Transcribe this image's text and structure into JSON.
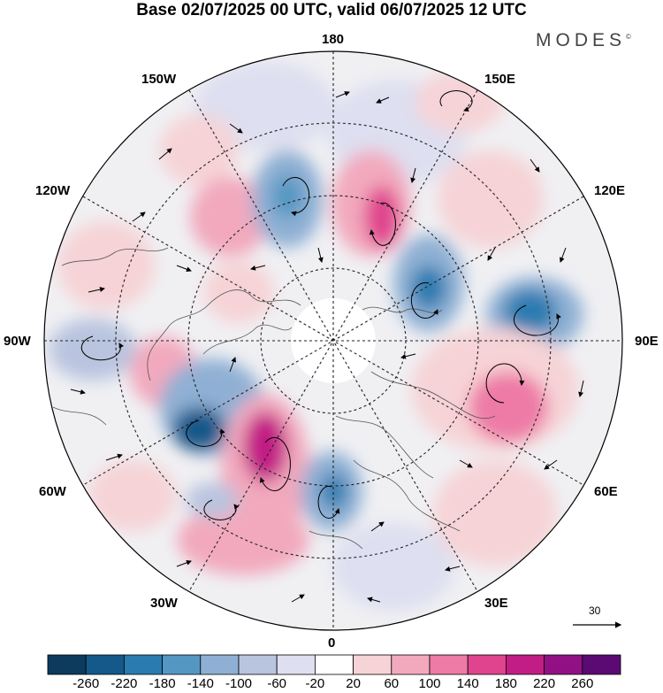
{
  "header": {
    "title": "Base 02/07/2025 00 UTC, valid 06/07/2025 12 UTC",
    "brand": "MODES",
    "brand_mark": "©"
  },
  "map": {
    "projection": "north-polar-stereographic",
    "longitude_labels": {
      "top": "180",
      "bottom": "0",
      "left": "90W",
      "right": "90E",
      "upper_left_1": "150W",
      "upper_left_2": "120W",
      "lower_left_1": "60W",
      "lower_left_2": "30W",
      "upper_right_1": "150E",
      "upper_right_2": "120E",
      "lower_right_1": "60E",
      "lower_right_2": "30E"
    },
    "vector_reference": "30"
  },
  "colorbar": {
    "ticks": [
      "-260",
      "-220",
      "-180",
      "-140",
      "-100",
      "-60",
      "-20",
      "20",
      "60",
      "100",
      "140",
      "180",
      "220",
      "260"
    ],
    "colors": [
      "#0c3b5e",
      "#14598a",
      "#2a7bb0",
      "#5497c2",
      "#8fb0d4",
      "#b9c4df",
      "#dedff0",
      "#ffffff",
      "#f6d3d6",
      "#f2a9bd",
      "#ee7aa6",
      "#e0448e",
      "#c21d85",
      "#911185",
      "#5b0a74"
    ]
  }
}
